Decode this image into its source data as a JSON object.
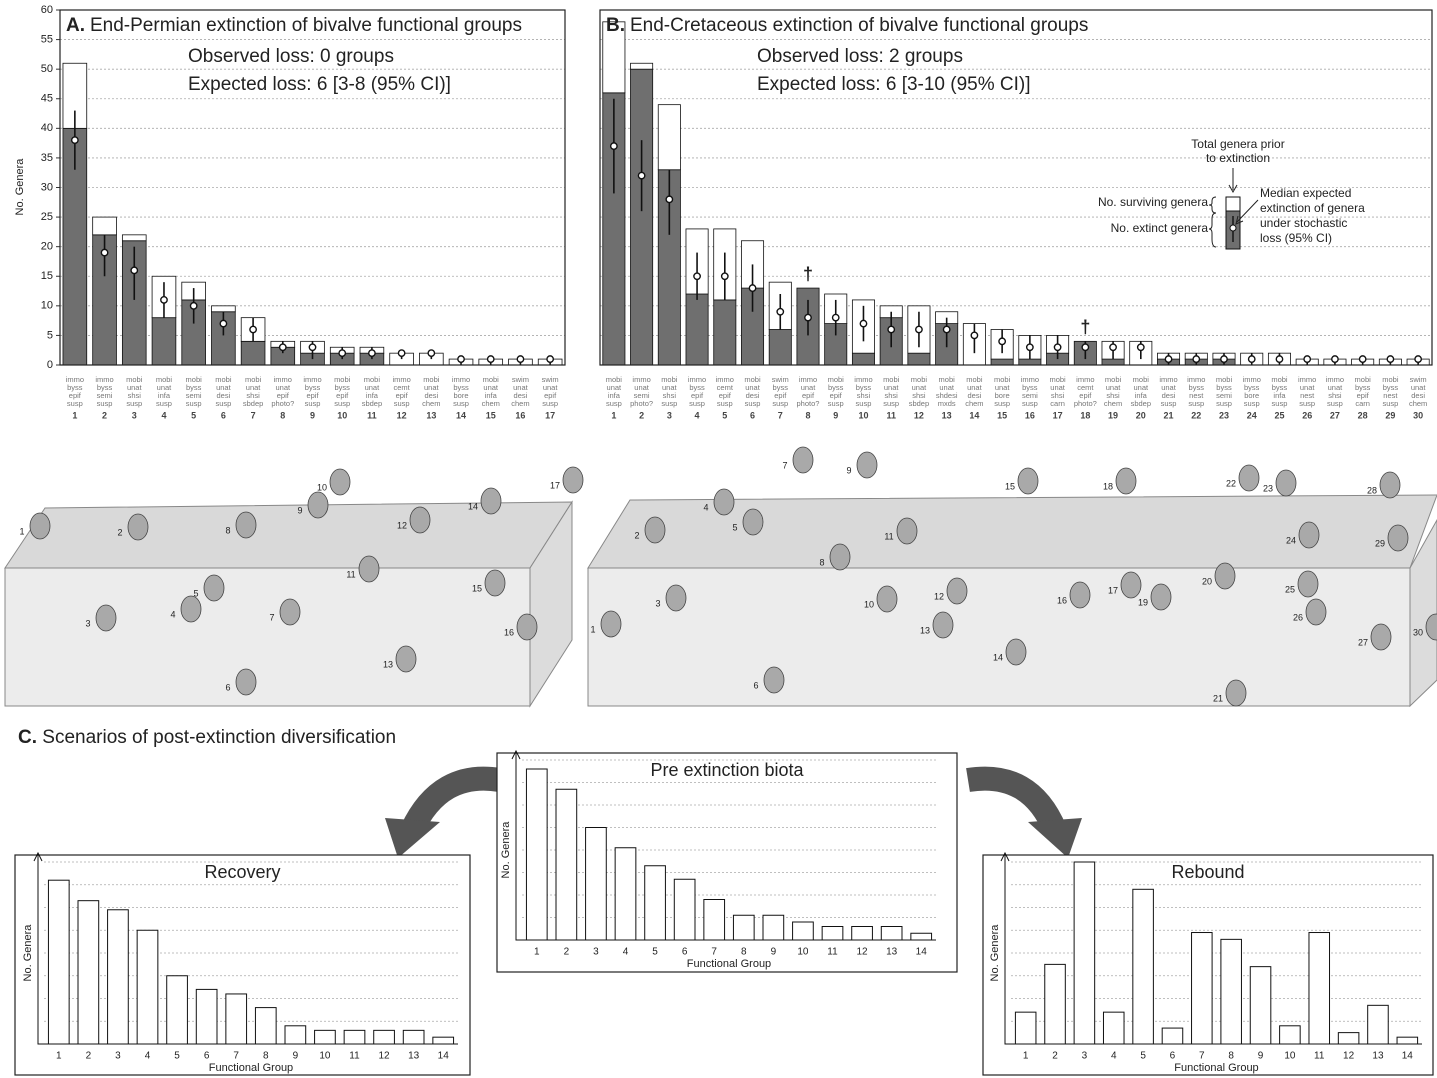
{
  "chart_data": [
    {
      "type": "bar",
      "stacked": true,
      "panel_label": "A.",
      "title": "End-Permian extinction of bivalve functional groups",
      "notes": [
        "Observed loss: 0 groups",
        "Expected loss: 6 [3-8 (95% CI)]"
      ],
      "ylabel": "No. Genera",
      "ylim": [
        0,
        60
      ],
      "yticks": [
        0,
        5,
        10,
        15,
        20,
        25,
        30,
        35,
        40,
        45,
        50,
        55,
        60
      ],
      "grid": true,
      "show_tick_labels": true,
      "categories": [
        "1",
        "2",
        "3",
        "4",
        "5",
        "6",
        "7",
        "8",
        "9",
        "10",
        "11",
        "12",
        "13",
        "14",
        "15",
        "16",
        "17"
      ],
      "category_codes": [
        [
          "immo",
          "byss",
          "epif",
          "susp"
        ],
        [
          "immo",
          "byss",
          "semi",
          "susp"
        ],
        [
          "mobi",
          "unat",
          "shsi",
          "susp"
        ],
        [
          "mobi",
          "unat",
          "infa",
          "susp"
        ],
        [
          "mobi",
          "byss",
          "semi",
          "susp"
        ],
        [
          "mobi",
          "unat",
          "desi",
          "susp"
        ],
        [
          "mobi",
          "unat",
          "shsi",
          "sbdep"
        ],
        [
          "immo",
          "unat",
          "epif",
          "photo?"
        ],
        [
          "immo",
          "byss",
          "epif",
          "susp"
        ],
        [
          "mobi",
          "byss",
          "epif",
          "susp"
        ],
        [
          "mobi",
          "unat",
          "infa",
          "sbdep"
        ],
        [
          "immo",
          "cemt",
          "epif",
          "susp"
        ],
        [
          "mobi",
          "unat",
          "desi",
          "chem"
        ],
        [
          "immo",
          "byss",
          "bore",
          "susp"
        ],
        [
          "mobi",
          "unat",
          "infa",
          "chem"
        ],
        [
          "swim",
          "unat",
          "desi",
          "chem"
        ],
        [
          "swim",
          "unat",
          "epif",
          "susp"
        ]
      ],
      "series": [
        {
          "color": "#6f6f6f",
          "values": [
            40,
            22,
            21,
            8,
            11,
            9,
            4,
            3,
            2,
            2,
            2,
            0,
            0,
            0,
            0,
            0,
            0
          ]
        },
        {
          "color": "#ffffff",
          "values": [
            11,
            3,
            1,
            7,
            3,
            1,
            4,
            1,
            2,
            1,
            1,
            2,
            2,
            1,
            1,
            1,
            1
          ]
        }
      ],
      "expected": {
        "values": [
          38,
          19,
          16,
          11,
          10,
          7,
          6,
          3,
          3,
          2,
          2,
          2,
          2,
          1,
          1,
          1,
          1
        ],
        "ci_low": [
          33,
          15,
          11,
          8,
          7,
          5,
          4,
          2,
          1,
          1,
          1,
          1,
          1,
          0,
          0,
          0,
          0
        ],
        "ci_high": [
          43,
          22,
          20,
          14,
          13,
          9,
          8,
          4,
          4,
          3,
          3,
          2,
          2,
          1,
          1,
          1,
          1
        ]
      },
      "illustration_labels": [
        "1",
        "2",
        "3",
        "4",
        "5",
        "6",
        "7",
        "8",
        "9",
        "10",
        "11",
        "12",
        "13",
        "14",
        "15",
        "16",
        "17"
      ]
    },
    {
      "type": "bar",
      "stacked": true,
      "panel_label": "B.",
      "title": "End-Cretaceous extinction of bivalve functional groups",
      "notes": [
        "Observed loss: 2 groups",
        "Expected loss: 6 [3-10 (95% CI)]"
      ],
      "ylim": [
        0,
        60
      ],
      "yticks": [
        0,
        5,
        10,
        15,
        20,
        25,
        30,
        35,
        40,
        45,
        50,
        55,
        60
      ],
      "grid": true,
      "show_tick_labels": false,
      "categories": [
        "1",
        "2",
        "3",
        "4",
        "5",
        "6",
        "7",
        "8",
        "9",
        "10",
        "11",
        "12",
        "13",
        "14",
        "15",
        "16",
        "17",
        "18",
        "19",
        "20",
        "21",
        "22",
        "23",
        "24",
        "25",
        "26",
        "27",
        "28",
        "29",
        "30"
      ],
      "category_codes": [
        [
          "mobi",
          "unat",
          "infa",
          "susp"
        ],
        [
          "immo",
          "unat",
          "semi",
          "photo?"
        ],
        [
          "mobi",
          "unat",
          "shsi",
          "susp"
        ],
        [
          "immo",
          "byss",
          "epif",
          "susp"
        ],
        [
          "immo",
          "cemt",
          "epif",
          "susp"
        ],
        [
          "mobi",
          "unat",
          "desi",
          "susp"
        ],
        [
          "swim",
          "byss",
          "epif",
          "susp"
        ],
        [
          "immo",
          "unat",
          "epif",
          "photo?"
        ],
        [
          "mobi",
          "byss",
          "epif",
          "susp"
        ],
        [
          "immo",
          "byss",
          "shsi",
          "susp"
        ],
        [
          "mobi",
          "unat",
          "shsi",
          "susp"
        ],
        [
          "mobi",
          "unat",
          "shsi",
          "sbdep"
        ],
        [
          "mobi",
          "unat",
          "shdesi",
          "mxds"
        ],
        [
          "mobi",
          "unat",
          "desi",
          "chem"
        ],
        [
          "mobi",
          "unat",
          "bore",
          "susp"
        ],
        [
          "immo",
          "byss",
          "semi",
          "susp"
        ],
        [
          "mobi",
          "unat",
          "shsi",
          "carn"
        ],
        [
          "immo",
          "cemt",
          "epif",
          "photo?"
        ],
        [
          "mobi",
          "unat",
          "shsi",
          "chem"
        ],
        [
          "mobi",
          "unat",
          "infa",
          "sbdep"
        ],
        [
          "immo",
          "unat",
          "desi",
          "susp"
        ],
        [
          "immo",
          "byss",
          "nest",
          "susp"
        ],
        [
          "mobi",
          "byss",
          "semi",
          "susp"
        ],
        [
          "immo",
          "byss",
          "bore",
          "susp"
        ],
        [
          "mobi",
          "byss",
          "infa",
          "susp"
        ],
        [
          "immo",
          "unat",
          "nest",
          "susp"
        ],
        [
          "immo",
          "unat",
          "shsi",
          "susp"
        ],
        [
          "mobi",
          "byss",
          "epif",
          "carn"
        ],
        [
          "mobi",
          "byss",
          "nest",
          "susp"
        ],
        [
          "swim",
          "unat",
          "desi",
          "chem"
        ]
      ],
      "series": [
        {
          "name": "No. extinct genera",
          "color": "#6f6f6f",
          "values": [
            46,
            50,
            33,
            12,
            11,
            13,
            6,
            13,
            7,
            2,
            8,
            2,
            7,
            0,
            1,
            1,
            2,
            4,
            1,
            0,
            1,
            1,
            1,
            0,
            0,
            0,
            0,
            0,
            0,
            0
          ]
        },
        {
          "name": "No. surviving genera",
          "color": "#ffffff",
          "values": [
            12,
            1,
            11,
            11,
            12,
            8,
            8,
            0,
            5,
            9,
            2,
            8,
            2,
            7,
            5,
            4,
            3,
            0,
            3,
            4,
            1,
            1,
            1,
            2,
            2,
            1,
            1,
            1,
            1,
            1
          ]
        }
      ],
      "expected": {
        "values": [
          37,
          32,
          28,
          15,
          15,
          13,
          9,
          8,
          8,
          7,
          6,
          6,
          6,
          5,
          4,
          3,
          3,
          3,
          3,
          3,
          1,
          1,
          1,
          1,
          1,
          1,
          1,
          1,
          1,
          1
        ],
        "ci_low": [
          29,
          26,
          22,
          11,
          11,
          9,
          6,
          5,
          5,
          4,
          3,
          3,
          3,
          2,
          2,
          1,
          1,
          1,
          1,
          1,
          0,
          0,
          0,
          0,
          0,
          0,
          0,
          0,
          0,
          0
        ],
        "ci_high": [
          45,
          38,
          33,
          19,
          19,
          17,
          12,
          11,
          11,
          10,
          9,
          9,
          8,
          7,
          6,
          5,
          5,
          4,
          4,
          4,
          2,
          2,
          2,
          2,
          2,
          1,
          1,
          1,
          1,
          1
        ]
      },
      "markers": [
        {
          "text": "†",
          "category": "8"
        },
        {
          "text": "†",
          "category": "18"
        }
      ],
      "legend": "inset-right",
      "legend_total": [
        "Total genera prior",
        "to extinction"
      ],
      "legend_median": [
        "Median expected",
        "extinction of genera",
        "under stochastic",
        "loss (95% CI)"
      ],
      "illustration_labels": [
        "1",
        "2",
        "3",
        "4",
        "5",
        "6",
        "7",
        "8",
        "9",
        "10",
        "11",
        "12",
        "13",
        "14",
        "15",
        "16",
        "17",
        "18",
        "19",
        "20",
        "21",
        "22",
        "23",
        "24",
        "25",
        "26",
        "27",
        "28",
        "29",
        "30"
      ]
    },
    {
      "type": "bar",
      "title": "Pre extinction biota",
      "xlabel": "Functional Group",
      "ylabel": "No. Genera",
      "ylim": [
        0,
        8
      ],
      "yticks": [
        1,
        2,
        3,
        4,
        5,
        6,
        7,
        8
      ],
      "grid": true,
      "categories": [
        "1",
        "2",
        "3",
        "4",
        "5",
        "6",
        "7",
        "8",
        "9",
        "10",
        "11",
        "12",
        "13",
        "14"
      ],
      "values": [
        7.6,
        6.7,
        5.0,
        4.1,
        3.3,
        2.7,
        1.8,
        1.1,
        1.1,
        0.8,
        0.6,
        0.6,
        0.6,
        0.3
      ],
      "color": "#ffffff"
    },
    {
      "type": "bar",
      "title": "Recovery",
      "xlabel": "Functional Group",
      "ylabel": "No. Genera",
      "ylim": [
        0,
        8
      ],
      "yticks": [
        1,
        2,
        3,
        4,
        5,
        6,
        7,
        8
      ],
      "grid": true,
      "categories": [
        "1",
        "2",
        "3",
        "4",
        "5",
        "6",
        "7",
        "8",
        "9",
        "10",
        "11",
        "12",
        "13",
        "14"
      ],
      "values": [
        7.2,
        6.3,
        5.9,
        5.0,
        3.0,
        2.4,
        2.2,
        1.6,
        0.8,
        0.6,
        0.6,
        0.6,
        0.6,
        0.3
      ],
      "color": "#ffffff"
    },
    {
      "type": "bar",
      "title": "Rebound",
      "xlabel": "Functional Group",
      "ylabel": "No. Genera",
      "ylim": [
        0,
        8
      ],
      "yticks": [
        1,
        2,
        3,
        4,
        5,
        6,
        7,
        8
      ],
      "grid": true,
      "categories": [
        "1",
        "2",
        "3",
        "4",
        "5",
        "6",
        "7",
        "8",
        "9",
        "10",
        "11",
        "12",
        "13",
        "14"
      ],
      "values": [
        1.4,
        3.5,
        8.0,
        1.4,
        6.8,
        0.7,
        4.9,
        4.6,
        3.4,
        0.8,
        4.9,
        0.5,
        1.7,
        0.3
      ],
      "color": "#ffffff"
    }
  ],
  "panel_c": {
    "panel_label": "C.",
    "title": "Scenarios of post-extinction diversification"
  }
}
